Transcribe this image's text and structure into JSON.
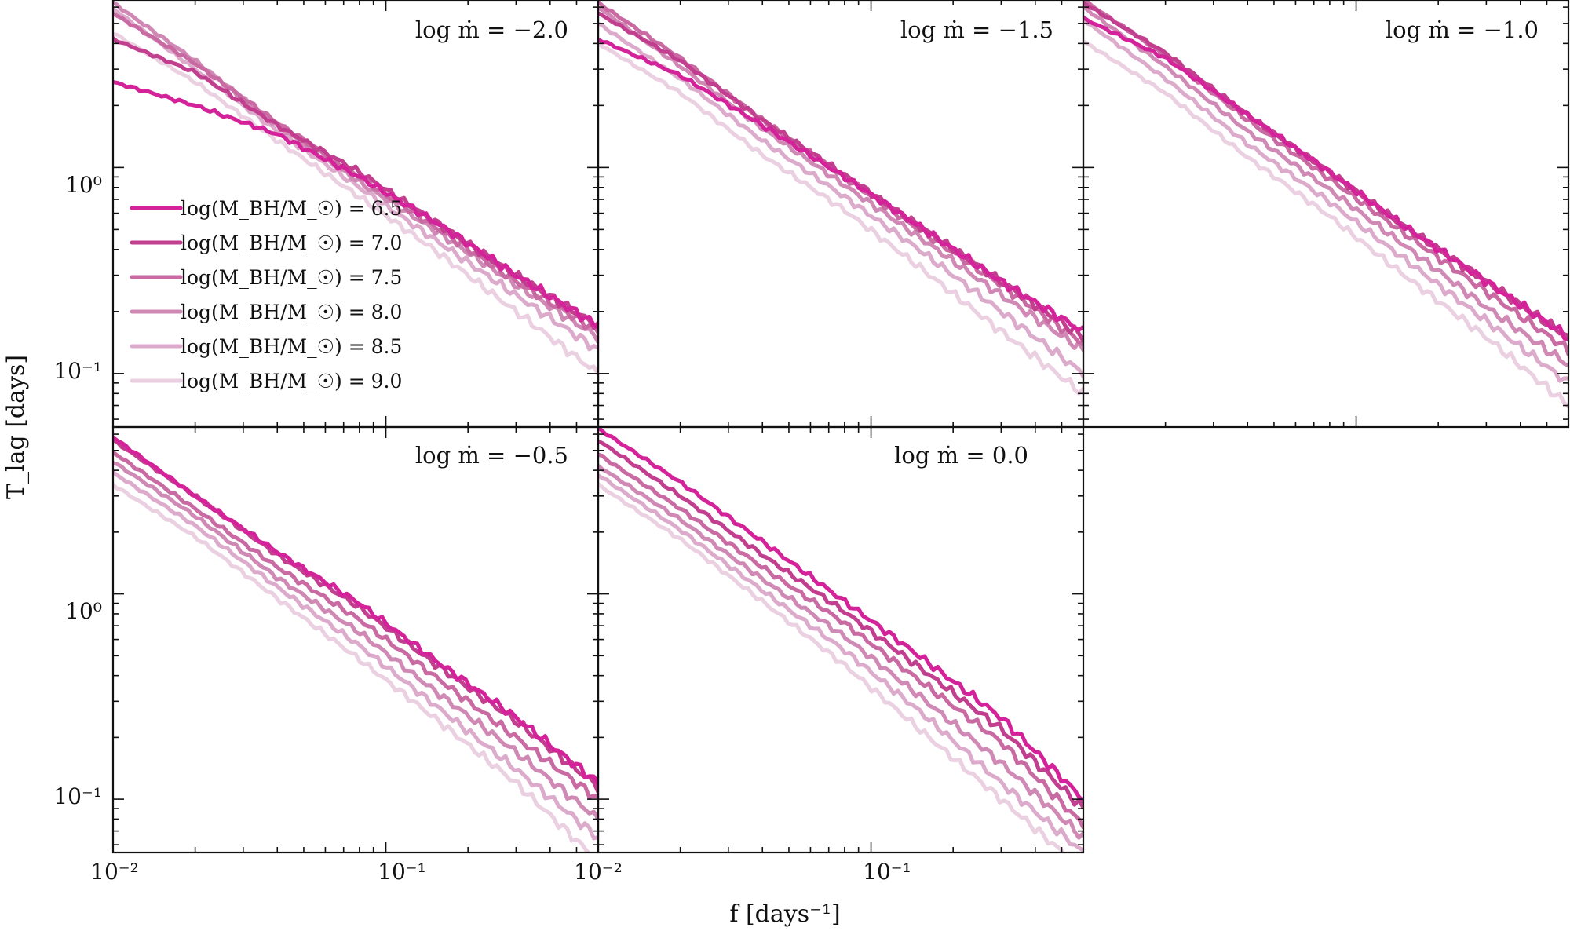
{
  "figure": {
    "xlabel": "f [days⁻¹]",
    "ylabel": "T_lag [days]"
  },
  "chart_data": {
    "type": "line",
    "x_scale": "log",
    "y_scale": "log",
    "xlim": [
      0.01,
      0.6
    ],
    "ylim": [
      0.055,
      6.5
    ],
    "xticklabels": [
      "10⁻²",
      "10⁻¹"
    ],
    "yticklabels": [
      "10⁰",
      "10⁻¹"
    ],
    "x_tick_values": [
      0.01,
      0.1
    ],
    "y_tick_values": [
      1,
      0.1
    ],
    "colors": [
      "#d4239a",
      "#c23e8f",
      "#c96aa3",
      "#cf89b4",
      "#dcaacb",
      "#ead0e1"
    ],
    "legend": {
      "placement": "panel-1 middle-left",
      "entries": [
        "log(M_BH/M_☉) = 6.5",
        "log(M_BH/M_☉) = 7.0",
        "log(M_BH/M_☉) = 7.5",
        "log(M_BH/M_☉) = 8.0",
        "log(M_BH/M_☉) = 8.5",
        "log(M_BH/M_☉) = 9.0"
      ]
    },
    "panels": [
      {
        "title": "log ṁ = −2.0",
        "series": [
          {
            "name": "log(M_BH/M_☉) = 6.5",
            "x": [
              0.01,
              0.02,
              0.04,
              0.08,
              0.15,
              0.3,
              0.6
            ],
            "y": [
              2.6,
              2.0,
              1.45,
              0.9,
              0.55,
              0.3,
              0.17
            ]
          },
          {
            "name": "log(M_BH/M_☉) = 7.0",
            "x": [
              0.01,
              0.02,
              0.04,
              0.08,
              0.15,
              0.3,
              0.6
            ],
            "y": [
              4.2,
              2.9,
              1.6,
              0.95,
              0.55,
              0.3,
              0.17
            ]
          },
          {
            "name": "log(M_BH/M_☉) = 7.5",
            "x": [
              0.01,
              0.02,
              0.04,
              0.08,
              0.15,
              0.3,
              0.6
            ],
            "y": [
              5.6,
              3.2,
              1.65,
              0.9,
              0.52,
              0.28,
              0.16
            ]
          },
          {
            "name": "log(M_BH/M_☉) = 8.0",
            "x": [
              0.01,
              0.02,
              0.04,
              0.08,
              0.15,
              0.3,
              0.6
            ],
            "y": [
              6.3,
              3.3,
              1.6,
              0.85,
              0.5,
              0.27,
              0.15
            ]
          },
          {
            "name": "log(M_BH/M_☉) = 8.5",
            "x": [
              0.01,
              0.02,
              0.04,
              0.08,
              0.15,
              0.3,
              0.6
            ],
            "y": [
              5.9,
              3.0,
              1.5,
              0.8,
              0.45,
              0.24,
              0.13
            ]
          },
          {
            "name": "log(M_BH/M_☉) = 9.0",
            "x": [
              0.01,
              0.02,
              0.04,
              0.08,
              0.15,
              0.3,
              0.6
            ],
            "y": [
              4.5,
              2.6,
              1.35,
              0.72,
              0.4,
              0.2,
              0.1
            ]
          }
        ]
      },
      {
        "title": "log ṁ = −1.5",
        "series": [
          {
            "name": "log(M_BH/M_☉) = 6.5",
            "x": [
              0.01,
              0.02,
              0.04,
              0.08,
              0.15,
              0.3,
              0.6
            ],
            "y": [
              4.2,
              2.8,
              1.6,
              0.9,
              0.52,
              0.28,
              0.16
            ]
          },
          {
            "name": "log(M_BH/M_☉) = 7.0",
            "x": [
              0.01,
              0.02,
              0.04,
              0.08,
              0.15,
              0.3,
              0.6
            ],
            "y": [
              5.6,
              3.3,
              1.7,
              0.92,
              0.52,
              0.28,
              0.15
            ]
          },
          {
            "name": "log(M_BH/M_☉) = 7.5",
            "x": [
              0.01,
              0.02,
              0.04,
              0.08,
              0.15,
              0.3,
              0.6
            ],
            "y": [
              6.3,
              3.4,
              1.7,
              0.9,
              0.5,
              0.27,
              0.14
            ]
          },
          {
            "name": "log(M_BH/M_☉) = 8.0",
            "x": [
              0.01,
              0.02,
              0.04,
              0.08,
              0.15,
              0.3,
              0.6
            ],
            "y": [
              6.0,
              3.1,
              1.55,
              0.82,
              0.46,
              0.24,
              0.13
            ]
          },
          {
            "name": "log(M_BH/M_☉) = 8.5",
            "x": [
              0.01,
              0.02,
              0.04,
              0.08,
              0.15,
              0.3,
              0.6
            ],
            "y": [
              5.0,
              2.7,
              1.35,
              0.72,
              0.4,
              0.2,
              0.1
            ]
          },
          {
            "name": "log(M_BH/M_☉) = 9.0",
            "x": [
              0.01,
              0.02,
              0.04,
              0.08,
              0.15,
              0.3,
              0.6
            ],
            "y": [
              4.0,
              2.3,
              1.15,
              0.62,
              0.33,
              0.16,
              0.08
            ]
          }
        ]
      },
      {
        "title": "log ṁ = −1.0",
        "series": [
          {
            "name": "log(M_BH/M_☉) = 6.5",
            "x": [
              0.01,
              0.02,
              0.04,
              0.08,
              0.15,
              0.3,
              0.6
            ],
            "y": [
              5.3,
              3.4,
              1.8,
              0.95,
              0.52,
              0.28,
              0.15
            ]
          },
          {
            "name": "log(M_BH/M_☉) = 7.0",
            "x": [
              0.01,
              0.02,
              0.04,
              0.08,
              0.15,
              0.3,
              0.6
            ],
            "y": [
              6.3,
              3.6,
              1.8,
              0.95,
              0.52,
              0.28,
              0.15
            ]
          },
          {
            "name": "log(M_BH/M_☉) = 7.5",
            "x": [
              0.01,
              0.02,
              0.04,
              0.08,
              0.15,
              0.3,
              0.6
            ],
            "y": [
              6.5,
              3.5,
              1.7,
              0.88,
              0.48,
              0.25,
              0.13
            ]
          },
          {
            "name": "log(M_BH/M_☉) = 8.0",
            "x": [
              0.01,
              0.02,
              0.04,
              0.08,
              0.15,
              0.3,
              0.6
            ],
            "y": [
              6.0,
              3.1,
              1.5,
              0.78,
              0.42,
              0.21,
              0.11
            ]
          },
          {
            "name": "log(M_BH/M_☉) = 8.5",
            "x": [
              0.01,
              0.02,
              0.04,
              0.08,
              0.15,
              0.3,
              0.6
            ],
            "y": [
              5.2,
              2.7,
              1.3,
              0.68,
              0.36,
              0.18,
              0.09
            ]
          },
          {
            "name": "log(M_BH/M_☉) = 9.0",
            "x": [
              0.01,
              0.02,
              0.04,
              0.08,
              0.15,
              0.3,
              0.6
            ],
            "y": [
              4.1,
              2.3,
              1.12,
              0.58,
              0.3,
              0.15,
              0.07
            ]
          }
        ]
      },
      {
        "title": "log ṁ = −0.5",
        "series": [
          {
            "name": "log(M_BH/M_☉) = 6.5",
            "x": [
              0.01,
              0.02,
              0.04,
              0.08,
              0.15,
              0.3,
              0.6
            ],
            "y": [
              5.8,
              3.0,
              1.6,
              0.9,
              0.48,
              0.25,
              0.12
            ]
          },
          {
            "name": "log(M_BH/M_☉) = 7.0",
            "x": [
              0.01,
              0.02,
              0.04,
              0.08,
              0.15,
              0.3,
              0.6
            ],
            "y": [
              5.6,
              3.0,
              1.55,
              0.86,
              0.46,
              0.24,
              0.115
            ]
          },
          {
            "name": "log(M_BH/M_☉) = 7.5",
            "x": [
              0.01,
              0.02,
              0.04,
              0.08,
              0.15,
              0.3,
              0.6
            ],
            "y": [
              4.9,
              2.6,
              1.35,
              0.75,
              0.4,
              0.2,
              0.1
            ]
          },
          {
            "name": "log(M_BH/M_☉) = 8.0",
            "x": [
              0.01,
              0.02,
              0.04,
              0.08,
              0.15,
              0.3,
              0.6
            ],
            "y": [
              4.4,
              2.4,
              1.2,
              0.65,
              0.34,
              0.17,
              0.08
            ]
          },
          {
            "name": "log(M_BH/M_☉) = 8.5",
            "x": [
              0.01,
              0.02,
              0.04,
              0.08,
              0.15,
              0.3,
              0.6
            ],
            "y": [
              3.9,
              2.15,
              1.08,
              0.56,
              0.29,
              0.14,
              0.065
            ]
          },
          {
            "name": "log(M_BH/M_☉) = 9.0",
            "x": [
              0.01,
              0.02,
              0.04,
              0.08,
              0.15,
              0.3,
              0.6
            ],
            "y": [
              3.4,
              1.9,
              0.95,
              0.48,
              0.25,
              0.12,
              0.05
            ]
          }
        ]
      },
      {
        "title": "log ṁ = 0.0",
        "series": [
          {
            "name": "log(M_BH/M_☉) = 6.5",
            "x": [
              0.01,
              0.02,
              0.04,
              0.08,
              0.15,
              0.3,
              0.6
            ],
            "y": [
              6.4,
              3.5,
              1.8,
              0.92,
              0.5,
              0.25,
              0.1
            ]
          },
          {
            "name": "log(M_BH/M_☉) = 7.0",
            "x": [
              0.01,
              0.02,
              0.04,
              0.08,
              0.15,
              0.3,
              0.6
            ],
            "y": [
              5.6,
              3.0,
              1.55,
              0.82,
              0.44,
              0.22,
              0.09
            ]
          },
          {
            "name": "log(M_BH/M_☉) = 7.5",
            "x": [
              0.01,
              0.02,
              0.04,
              0.08,
              0.15,
              0.3,
              0.6
            ],
            "y": [
              4.8,
              2.6,
              1.35,
              0.72,
              0.38,
              0.19,
              0.075
            ]
          },
          {
            "name": "log(M_BH/M_☉) = 8.0",
            "x": [
              0.01,
              0.02,
              0.04,
              0.08,
              0.15,
              0.3,
              0.6
            ],
            "y": [
              4.2,
              2.3,
              1.18,
              0.62,
              0.32,
              0.15,
              0.065
            ]
          },
          {
            "name": "log(M_BH/M_☉) = 8.5",
            "x": [
              0.01,
              0.02,
              0.04,
              0.08,
              0.15,
              0.3,
              0.6
            ],
            "y": [
              3.8,
              2.05,
              1.04,
              0.53,
              0.27,
              0.12,
              0.055
            ]
          },
          {
            "name": "log(M_BH/M_☉) = 9.0",
            "x": [
              0.01,
              0.02,
              0.04,
              0.08,
              0.15,
              0.3,
              0.6
            ],
            "y": [
              3.4,
              1.85,
              0.92,
              0.45,
              0.22,
              0.1,
              0.045
            ]
          }
        ]
      }
    ]
  }
}
